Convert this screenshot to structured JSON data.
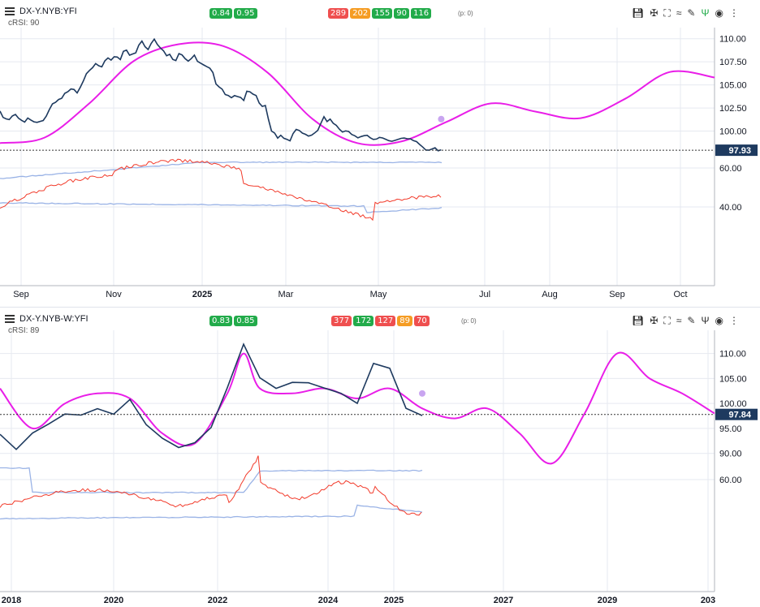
{
  "panels": [
    {
      "title": "DX-Y.NYB:YFI",
      "subtitle": "cRSI: 90",
      "top_badges": [
        {
          "text": "0.84",
          "color": "#22ab4a"
        },
        {
          "text": "0.95",
          "color": "#22ab4a"
        }
      ],
      "cycle_badges": [
        {
          "text": "289",
          "color": "#ef4f4f"
        },
        {
          "text": "202",
          "color": "#f59c23"
        },
        {
          "text": "155",
          "color": "#22ab4a"
        },
        {
          "text": "90",
          "color": "#22ab4a"
        },
        {
          "text": "116",
          "color": "#22ab4a"
        }
      ],
      "phase_label": "(p: 0)",
      "last_value_label": "97.93",
      "x_tick_labels": [
        "Sep",
        "Nov",
        "2025",
        "Mar",
        "May",
        "Jul",
        "Aug",
        "Sep",
        "Oct"
      ],
      "y_tick_labels_price": [
        "110.00",
        "107.50",
        "105.00",
        "102.50",
        "100.00"
      ],
      "y_tick_labels_rsi": [
        "60.00",
        "40.00"
      ]
    },
    {
      "title": "DX-Y.NYB-W:YFI",
      "subtitle": "cRSI: 89",
      "top_badges": [
        {
          "text": "0.83",
          "color": "#22ab4a"
        },
        {
          "text": "0.85",
          "color": "#22ab4a"
        }
      ],
      "cycle_badges": [
        {
          "text": "377",
          "color": "#ef4f4f"
        },
        {
          "text": "172",
          "color": "#22ab4a"
        },
        {
          "text": "127",
          "color": "#ef4f4f"
        },
        {
          "text": "89",
          "color": "#f59c23"
        },
        {
          "text": "70",
          "color": "#ef4f4f"
        }
      ],
      "phase_label": "(p: 0)",
      "last_value_label": "97.84",
      "x_tick_labels": [
        "2018",
        "2020",
        "2022",
        "2024",
        "2025",
        "2027",
        "2029",
        "203"
      ],
      "y_tick_labels_price": [
        "110.00",
        "105.00",
        "100.00",
        "95.00",
        "90.00"
      ],
      "y_tick_labels_rsi": [
        "60.00"
      ]
    }
  ],
  "colors": {
    "price": "#1e3a5f",
    "cycle": "#e91ee8",
    "rsi": "#f23b2b",
    "band": "#9ab3e6",
    "grid": "#e6e9f0",
    "label_bg": "#1e3a5f"
  },
  "toolbar_icons": [
    "save-icon",
    "pin-icon",
    "fullscreen-icon",
    "compare-icon",
    "draw-icon",
    "indicator-icon",
    "eye-icon",
    "more-icon"
  ],
  "chart_data": [
    {
      "type": "line",
      "title": "DX-Y.NYB:YFI",
      "y_scale": "price",
      "ylim": [
        97.5,
        110.5
      ],
      "x_axis_labels": [
        "Sep",
        "Nov",
        "2025",
        "Mar",
        "May",
        "Jul",
        "Aug",
        "Sep",
        "Oct"
      ],
      "series": [
        {
          "x": [
            0,
            2,
            4,
            6,
            8,
            10,
            12,
            14,
            16,
            18,
            20,
            22,
            24,
            26,
            28,
            30,
            32,
            34,
            36,
            38,
            40,
            42,
            44,
            46,
            48,
            50,
            52,
            54,
            56,
            58,
            60,
            62,
            64,
            66,
            68,
            70,
            72,
            74,
            76,
            78,
            80,
            82,
            84,
            86,
            88,
            90,
            92,
            94,
            96,
            98,
            100,
            102,
            104,
            106,
            108,
            110,
            112,
            114,
            116,
            118,
            120,
            122,
            124,
            126,
            128,
            130,
            132,
            134,
            136,
            138,
            140,
            142,
            144,
            146,
            148,
            150,
            152,
            154,
            156,
            158,
            160,
            162,
            164,
            166,
            168,
            170,
            172,
            174,
            176,
            178,
            180,
            182,
            184,
            186,
            188,
            190,
            192,
            194,
            196,
            198,
            200,
            202,
            204,
            206,
            208,
            210,
            212,
            214,
            216,
            218,
            220,
            222,
            224,
            226,
            228,
            230,
            232,
            234,
            236,
            238,
            240,
            242,
            244,
            246,
            248,
            250,
            252,
            254,
            256,
            258,
            260,
            262,
            264,
            266,
            268,
            270,
            272,
            274,
            276,
            278,
            280,
            282,
            284,
            286
          ],
          "values": [
            102.1,
            101.5,
            101.3,
            101.2,
            101.6,
            101.8,
            101.4,
            101.1,
            101.0,
            101.4,
            101.2,
            101.0,
            100.9,
            101.0,
            101.1,
            101.6,
            102.3,
            102.9,
            103.1,
            103.4,
            103.6,
            104.1,
            104.3,
            104.6,
            104.5,
            104.2,
            104.7,
            105.4,
            106.2,
            106.6,
            106.9,
            107.3,
            107.1,
            106.9,
            107.6,
            107.9,
            107.7,
            108.1,
            108.0,
            107.8,
            108.6,
            108.7,
            108.2,
            108.4,
            108.5,
            109.3,
            109.7,
            109.2,
            108.8,
            109.5,
            109.9,
            109.4,
            109.0,
            108.7,
            108.2,
            108.3,
            107.8,
            107.6,
            108.4,
            108.2,
            107.8,
            107.6,
            107.8,
            108.2,
            107.6,
            107.3,
            107.2,
            107.0,
            106.8,
            106.3,
            105.1,
            104.8,
            104.6,
            104.0,
            103.8,
            103.6,
            103.9,
            103.7,
            103.7,
            103.3,
            104.3,
            104.2,
            104.0,
            103.8,
            103.0,
            102.7,
            102.8,
            101.3,
            100.0,
            99.8,
            99.3,
            99.5,
            99.2,
            99.1,
            98.9,
            99.7,
            100.2,
            100.0,
            99.8,
            99.7,
            99.4,
            99.5,
            99.8,
            100.1,
            100.9,
            101.5,
            101.0,
            101.3,
            100.9,
            100.6,
            100.2,
            99.9,
            100.0,
            99.9,
            99.6,
            99.5,
            99.3,
            99.4,
            99.5,
            99.6,
            99.3,
            99.1,
            99.2,
            99.3,
            99.2,
            99.1,
            99.0,
            98.9,
            99.0,
            99.1,
            99.2,
            99.3,
            99.2,
            99.1,
            99.0,
            98.8,
            98.6,
            98.3,
            98.0,
            97.9,
            98.0,
            98.2,
            97.9,
            97.93
          ],
          "name": ""
        },
        {
          "x": [
            0,
            50,
            100,
            150,
            200,
            250,
            300,
            350,
            400,
            450,
            500,
            550,
            600,
            650,
            700,
            750,
            800
          ],
          "values": [
            98.7,
            99.3,
            103.0,
            107.6,
            109.4,
            109.2,
            106.3,
            101.3,
            98.7,
            98.9,
            101.0,
            103.0,
            102.1,
            101.4,
            103.5,
            106.4,
            105.8
          ],
          "name": ""
        }
      ]
    },
    {
      "type": "line",
      "title": "DX-Y.NYB-W:YFI",
      "y_scale": "price",
      "ylim": [
        88,
        114
      ],
      "x_axis_labels": [
        "2018",
        "2020",
        "2022",
        "2024",
        "2025",
        "2027",
        "2029",
        "203"
      ],
      "series": [
        {
          "x": [
            0,
            20,
            40,
            60,
            80,
            100,
            120,
            140,
            160,
            180,
            200,
            220,
            240,
            260,
            280,
            300,
            320,
            340,
            360,
            380,
            400,
            420,
            440,
            460,
            480,
            500,
            520
          ],
          "values": [
            94,
            91,
            94,
            96,
            98,
            97.5,
            99,
            98,
            101,
            96,
            93,
            91,
            92,
            95,
            103,
            112,
            105,
            103,
            104,
            104,
            103,
            102,
            100,
            108,
            107,
            99,
            97.8
          ],
          "name": ""
        },
        {
          "x": [
            0,
            40,
            80,
            120,
            160,
            200,
            240,
            280,
            300,
            320,
            360,
            400,
            440,
            480,
            520,
            560,
            600,
            640,
            680,
            720,
            760,
            800,
            840,
            880
          ],
          "values": [
            103,
            95,
            100,
            102,
            101,
            94,
            92,
            102,
            110,
            103,
            102,
            103,
            101,
            103,
            99,
            97,
            99,
            94,
            88,
            98,
            110,
            105,
            102,
            98
          ],
          "name": ""
        }
      ]
    }
  ]
}
